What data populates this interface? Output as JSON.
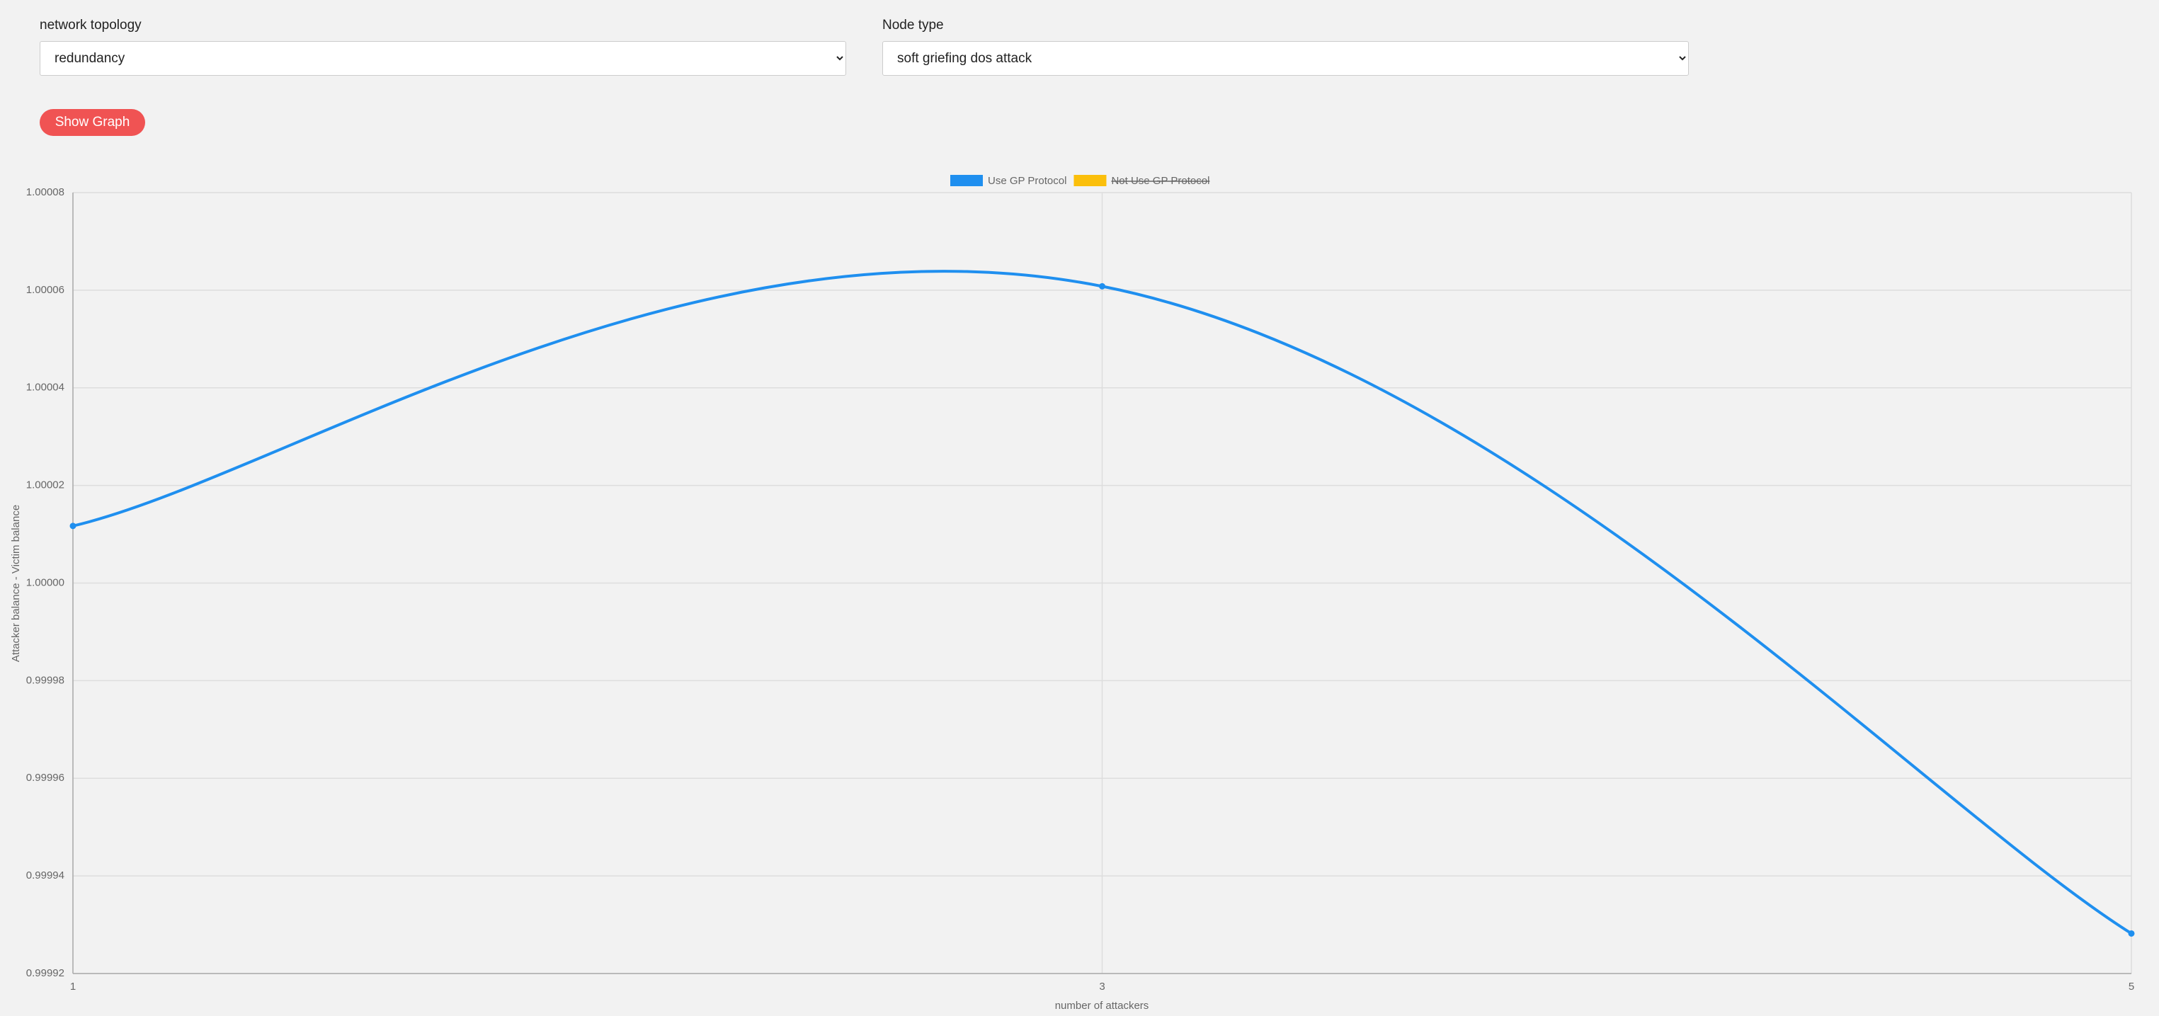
{
  "controls": {
    "topology_label": "network topology",
    "topology_value": "redundancy",
    "node_type_label": "Node type",
    "node_type_value": "soft griefing dos attack",
    "button": "Show Graph"
  },
  "chart_data": {
    "type": "line",
    "x": [
      1,
      3,
      5
    ],
    "series": [
      {
        "name": "Use GP Protocol",
        "color": "#1f8fef",
        "values": [
          1.0000117,
          1.0000608,
          0.9999282
        ]
      },
      {
        "name": "Not Use GP Protocol",
        "color": "#fbbf0b",
        "values": [
          null,
          null,
          null
        ],
        "hidden": true
      }
    ],
    "xlim": [
      1,
      5
    ],
    "xticks": [
      1,
      3,
      5
    ],
    "ylim": [
      0.99992,
      1.00008
    ],
    "yticks": [
      {
        "value": 0.99992,
        "label": "0.99992"
      },
      {
        "value": 0.99994,
        "label": "0.99994"
      },
      {
        "value": 0.99996,
        "label": "0.99996"
      },
      {
        "value": 0.99998,
        "label": "0.99998"
      },
      {
        "value": 1.0,
        "label": "1.00000"
      },
      {
        "value": 1.00002,
        "label": "1.00002"
      },
      {
        "value": 1.00004,
        "label": "1.00004"
      },
      {
        "value": 1.00006,
        "label": "1.00006"
      },
      {
        "value": 1.00008,
        "label": "1.00008"
      }
    ],
    "x_label": "number of attackers",
    "y_label": "Attacker balance - Victim balance",
    "grid": true,
    "legend": "top"
  }
}
